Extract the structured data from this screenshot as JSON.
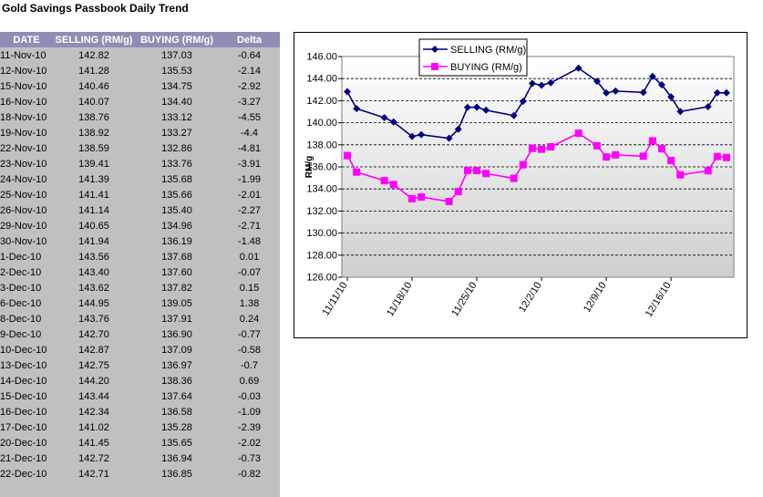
{
  "title": "Gold Savings Passbook Daily Trend",
  "table": {
    "headers": [
      "DATE",
      "SELLING (RM/g)",
      "BUYING (RM/g)",
      "Delta"
    ],
    "rows": [
      [
        "11-Nov-10",
        "142.82",
        "137.03",
        "-0.64"
      ],
      [
        "12-Nov-10",
        "141.28",
        "135.53",
        "-2.14"
      ],
      [
        "15-Nov-10",
        "140.46",
        "134.75",
        "-2.92"
      ],
      [
        "16-Nov-10",
        "140.07",
        "134.40",
        "-3.27"
      ],
      [
        "18-Nov-10",
        "138.76",
        "133.12",
        "-4.55"
      ],
      [
        "19-Nov-10",
        "138.92",
        "133.27",
        "-4.4"
      ],
      [
        "22-Nov-10",
        "138.59",
        "132.86",
        "-4.81"
      ],
      [
        "23-Nov-10",
        "139.41",
        "133.76",
        "-3.91"
      ],
      [
        "24-Nov-10",
        "141.39",
        "135.68",
        "-1.99"
      ],
      [
        "25-Nov-10",
        "141.41",
        "135.66",
        "-2.01"
      ],
      [
        "26-Nov-10",
        "141.14",
        "135.40",
        "-2.27"
      ],
      [
        "29-Nov-10",
        "140.65",
        "134.96",
        "-2.71"
      ],
      [
        "30-Nov-10",
        "141.94",
        "136.19",
        "-1.48"
      ],
      [
        "1-Dec-10",
        "143.56",
        "137.68",
        "0.01"
      ],
      [
        "2-Dec-10",
        "143.40",
        "137.60",
        "-0.07"
      ],
      [
        "3-Dec-10",
        "143.62",
        "137.82",
        "0.15"
      ],
      [
        "6-Dec-10",
        "144.95",
        "139.05",
        "1.38"
      ],
      [
        "8-Dec-10",
        "143.76",
        "137.91",
        "0.24"
      ],
      [
        "9-Dec-10",
        "142.70",
        "136.90",
        "-0.77"
      ],
      [
        "10-Dec-10",
        "142.87",
        "137.09",
        "-0.58"
      ],
      [
        "13-Dec-10",
        "142.75",
        "136.97",
        "-0.7"
      ],
      [
        "14-Dec-10",
        "144.20",
        "138.36",
        "0.69"
      ],
      [
        "15-Dec-10",
        "143.44",
        "137.64",
        "-0.03"
      ],
      [
        "16-Dec-10",
        "142.34",
        "136.58",
        "-1.09"
      ],
      [
        "17-Dec-10",
        "141.02",
        "135.28",
        "-2.39"
      ],
      [
        "20-Dec-10",
        "141.45",
        "135.65",
        "-2.02"
      ],
      [
        "21-Dec-10",
        "142.72",
        "136.94",
        "-0.73"
      ],
      [
        "22-Dec-10",
        "142.71",
        "136.85",
        "-0.82"
      ]
    ]
  },
  "chart_data": {
    "type": "line",
    "x": [
      "2010-11-11",
      "2010-11-12",
      "2010-11-15",
      "2010-11-16",
      "2010-11-18",
      "2010-11-19",
      "2010-11-22",
      "2010-11-23",
      "2010-11-24",
      "2010-11-25",
      "2010-11-26",
      "2010-11-29",
      "2010-11-30",
      "2010-12-01",
      "2010-12-02",
      "2010-12-03",
      "2010-12-06",
      "2010-12-08",
      "2010-12-09",
      "2010-12-10",
      "2010-12-13",
      "2010-12-14",
      "2010-12-15",
      "2010-12-16",
      "2010-12-17",
      "2010-12-20",
      "2010-12-21",
      "2010-12-22"
    ],
    "series": [
      {
        "name": "SELLING (RM/g)",
        "color": "#000080",
        "marker": "diamond",
        "values": [
          142.82,
          141.28,
          140.46,
          140.07,
          138.76,
          138.92,
          138.59,
          139.41,
          141.39,
          141.41,
          141.14,
          140.65,
          141.94,
          143.56,
          143.4,
          143.62,
          144.95,
          143.76,
          142.7,
          142.87,
          142.75,
          144.2,
          143.44,
          142.34,
          141.02,
          141.45,
          142.72,
          142.71
        ]
      },
      {
        "name": "BUYING (RM/g)",
        "color": "#ff00ff",
        "marker": "square",
        "values": [
          137.03,
          135.53,
          134.75,
          134.4,
          133.12,
          133.27,
          132.86,
          133.76,
          135.68,
          135.66,
          135.4,
          134.96,
          136.19,
          137.68,
          137.6,
          137.82,
          139.05,
          137.91,
          136.9,
          137.09,
          136.97,
          138.36,
          137.64,
          136.58,
          135.28,
          135.65,
          136.94,
          136.85
        ]
      }
    ],
    "ylabel": "RM/g",
    "ylim": [
      126,
      146
    ],
    "yticks": [
      "126.00",
      "128.00",
      "130.00",
      "132.00",
      "134.00",
      "136.00",
      "138.00",
      "140.00",
      "142.00",
      "144.00",
      "146.00"
    ],
    "xlim": [
      "2010-11-11",
      "2010-12-22"
    ],
    "xticks": [
      {
        "date": "2010-11-11",
        "label": "11/11/10"
      },
      {
        "date": "2010-11-18",
        "label": "11/18/10"
      },
      {
        "date": "2010-11-25",
        "label": "11/25/10"
      },
      {
        "date": "2010-12-02",
        "label": "12/2/10"
      },
      {
        "date": "2010-12-09",
        "label": "12/9/10"
      },
      {
        "date": "2010-12-16",
        "label": "12/16/10"
      }
    ],
    "grid": true,
    "legend_position": "top"
  }
}
